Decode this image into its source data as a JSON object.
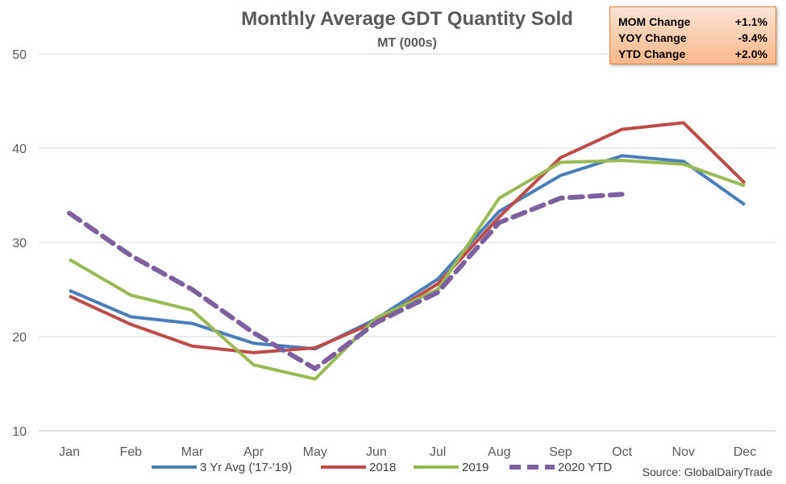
{
  "chart_data": {
    "type": "line",
    "title": "Monthly Average GDT Quantity Sold",
    "subtitle": "MT (000s)",
    "categories": [
      "Jan",
      "Feb",
      "Mar",
      "Apr",
      "May",
      "Jun",
      "Jul",
      "Aug",
      "Sep",
      "Oct",
      "Nov",
      "Dec"
    ],
    "ylim": [
      10,
      50
    ],
    "yticks": [
      "10",
      "20",
      "30",
      "40",
      "50"
    ],
    "grid": true,
    "legend_position": "bottom",
    "series": [
      {
        "name": "3 Yr Avg ('17-'19)",
        "color": "#4a7ebb",
        "dashed": false,
        "values": [
          24.9,
          22.1,
          21.4,
          19.3,
          18.7,
          21.9,
          26.1,
          33.3,
          37.1,
          39.2,
          38.6,
          34.0
        ]
      },
      {
        "name": "2018",
        "color": "#be4b48",
        "dashed": false,
        "values": [
          24.3,
          21.3,
          19.0,
          18.3,
          18.8,
          21.6,
          25.6,
          32.7,
          39.0,
          42.0,
          42.7,
          36.3
        ]
      },
      {
        "name": "2019",
        "color": "#98b954",
        "dashed": false,
        "values": [
          28.2,
          24.4,
          22.8,
          17.0,
          15.5,
          22.0,
          25.0,
          34.7,
          38.5,
          38.7,
          38.3,
          36.0
        ]
      },
      {
        "name": "2020 YTD",
        "color": "#7d60a0",
        "dashed": true,
        "values": [
          33.1,
          28.6,
          25.0,
          20.4,
          16.6,
          21.5,
          24.7,
          32.1,
          34.7,
          35.1,
          null,
          null
        ]
      }
    ]
  },
  "stats": [
    {
      "label": "MOM Change",
      "value": "+1.1%"
    },
    {
      "label": "YOY Change",
      "value": "-9.4%"
    },
    {
      "label": "YTD Change",
      "value": "+2.0%"
    }
  ],
  "source": "Source: GlobalDairyTrade"
}
